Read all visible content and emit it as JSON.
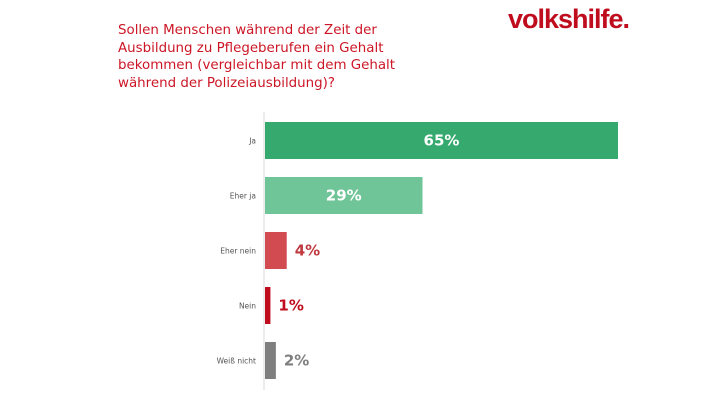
{
  "header": {
    "question": "Sollen Menschen während der Zeit der Ausbildung zu Pflegeberufen ein Gehalt bekommen (vergleichbar mit dem Gehalt während der Polizeiausbildung)?",
    "logo_text": "volkshilfe."
  },
  "colors": {
    "question_text": "#cc1626",
    "logo": "#c00d1e",
    "axis": "#d9d9d9"
  },
  "chart_data": {
    "type": "bar",
    "orientation": "horizontal",
    "title": "Sollen Menschen während der Zeit der Ausbildung zu Pflegeberufen ein Gehalt bekommen (vergleichbar mit dem Gehalt während der Polizeiausbildung)?",
    "categories": [
      "Ja",
      "Eher ja",
      "Eher nein",
      "Nein",
      "Weiß nicht"
    ],
    "values": [
      65,
      29,
      4,
      1,
      2
    ],
    "value_labels": [
      "65%",
      "29%",
      "4%",
      "1%",
      "2%"
    ],
    "unit": "%",
    "bar_colors": [
      "#35a96e",
      "#6fc597",
      "#d14b51",
      "#c00d1e",
      "#7f7f7f"
    ],
    "label_colors": [
      "#ffffff",
      "#ffffff",
      "#c0393f",
      "#c00d1e",
      "#7f7f7f"
    ],
    "xlim": [
      0,
      65
    ],
    "grid": false,
    "legend": "none"
  }
}
